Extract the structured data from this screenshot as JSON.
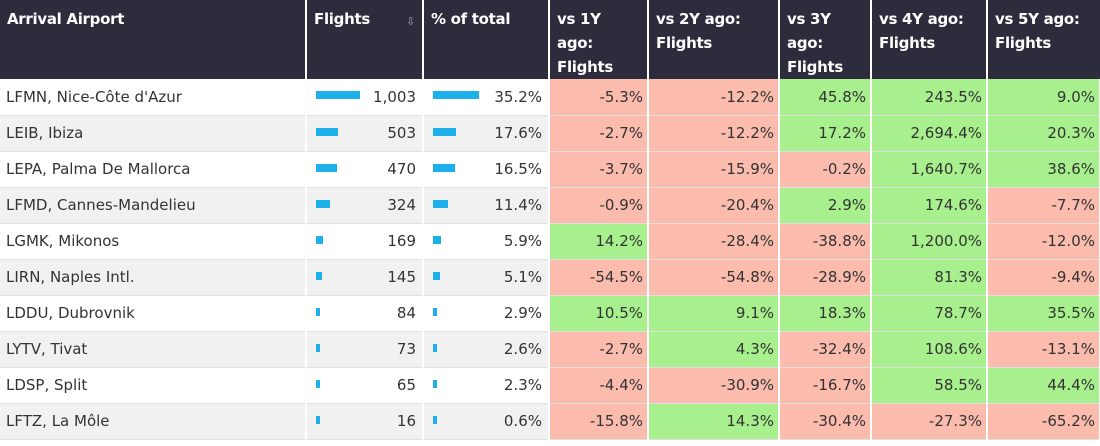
{
  "headers": {
    "airport": "Arrival Airport",
    "flights": "Flights",
    "pct": "% of total",
    "vs1": "vs 1Y ago: Flights",
    "vs2": "vs 2Y ago: Flights",
    "vs3": "vs 3Y ago: Flights",
    "vs4": "vs 4Y ago: Flights",
    "vs5": "vs 5Y ago: Flights"
  },
  "sort_icon": "sort-icon",
  "colors": {
    "header_bg": "#2c2c3c",
    "bar": "#1cb1ea",
    "positive": "#a8ef8d",
    "negative": "#fbbcad"
  },
  "rows": [
    {
      "airport": "LFMN, Nice-Côte d'Azur",
      "flights": "1,003",
      "flights_value": 1003,
      "pct": "35.2%",
      "pct_value": 35.2,
      "vs1": "-5.3%",
      "vs2": "-12.2%",
      "vs3": "45.8%",
      "vs4": "243.5%",
      "vs5": "9.0%"
    },
    {
      "airport": "LEIB, Ibiza",
      "flights": "503",
      "flights_value": 503,
      "pct": "17.6%",
      "pct_value": 17.6,
      "vs1": "-2.7%",
      "vs2": "-12.2%",
      "vs3": "17.2%",
      "vs4": "2,694.4%",
      "vs5": "20.3%"
    },
    {
      "airport": "LEPA, Palma De Mallorca",
      "flights": "470",
      "flights_value": 470,
      "pct": "16.5%",
      "pct_value": 16.5,
      "vs1": "-3.7%",
      "vs2": "-15.9%",
      "vs3": "-0.2%",
      "vs4": "1,640.7%",
      "vs5": "38.6%"
    },
    {
      "airport": "LFMD, Cannes-Mandelieu",
      "flights": "324",
      "flights_value": 324,
      "pct": "11.4%",
      "pct_value": 11.4,
      "vs1": "-0.9%",
      "vs2": "-20.4%",
      "vs3": "2.9%",
      "vs4": "174.6%",
      "vs5": "-7.7%"
    },
    {
      "airport": "LGMK, Mikonos",
      "flights": "169",
      "flights_value": 169,
      "pct": "5.9%",
      "pct_value": 5.9,
      "vs1": "14.2%",
      "vs2": "-28.4%",
      "vs3": "-38.8%",
      "vs4": "1,200.0%",
      "vs5": "-12.0%"
    },
    {
      "airport": "LIRN, Naples Intl.",
      "flights": "145",
      "flights_value": 145,
      "pct": "5.1%",
      "pct_value": 5.1,
      "vs1": "-54.5%",
      "vs2": "-54.8%",
      "vs3": "-28.9%",
      "vs4": "81.3%",
      "vs5": "-9.4%"
    },
    {
      "airport": "LDDU, Dubrovnik",
      "flights": "84",
      "flights_value": 84,
      "pct": "2.9%",
      "pct_value": 2.9,
      "vs1": "10.5%",
      "vs2": "9.1%",
      "vs3": "18.3%",
      "vs4": "78.7%",
      "vs5": "35.5%"
    },
    {
      "airport": "LYTV, Tivat",
      "flights": "73",
      "flights_value": 73,
      "pct": "2.6%",
      "pct_value": 2.6,
      "vs1": "-2.7%",
      "vs2": "4.3%",
      "vs3": "-32.4%",
      "vs4": "108.6%",
      "vs5": "-13.1%"
    },
    {
      "airport": "LDSP, Split",
      "flights": "65",
      "flights_value": 65,
      "pct": "2.3%",
      "pct_value": 2.3,
      "vs1": "-4.4%",
      "vs2": "-30.9%",
      "vs3": "-16.7%",
      "vs4": "58.5%",
      "vs5": "44.4%"
    },
    {
      "airport": "LFTZ, La Môle",
      "flights": "16",
      "flights_value": 16,
      "pct": "0.6%",
      "pct_value": 0.6,
      "vs1": "-15.8%",
      "vs2": "14.3%",
      "vs3": "-30.4%",
      "vs4": "-27.3%",
      "vs5": "-65.2%"
    }
  ]
}
